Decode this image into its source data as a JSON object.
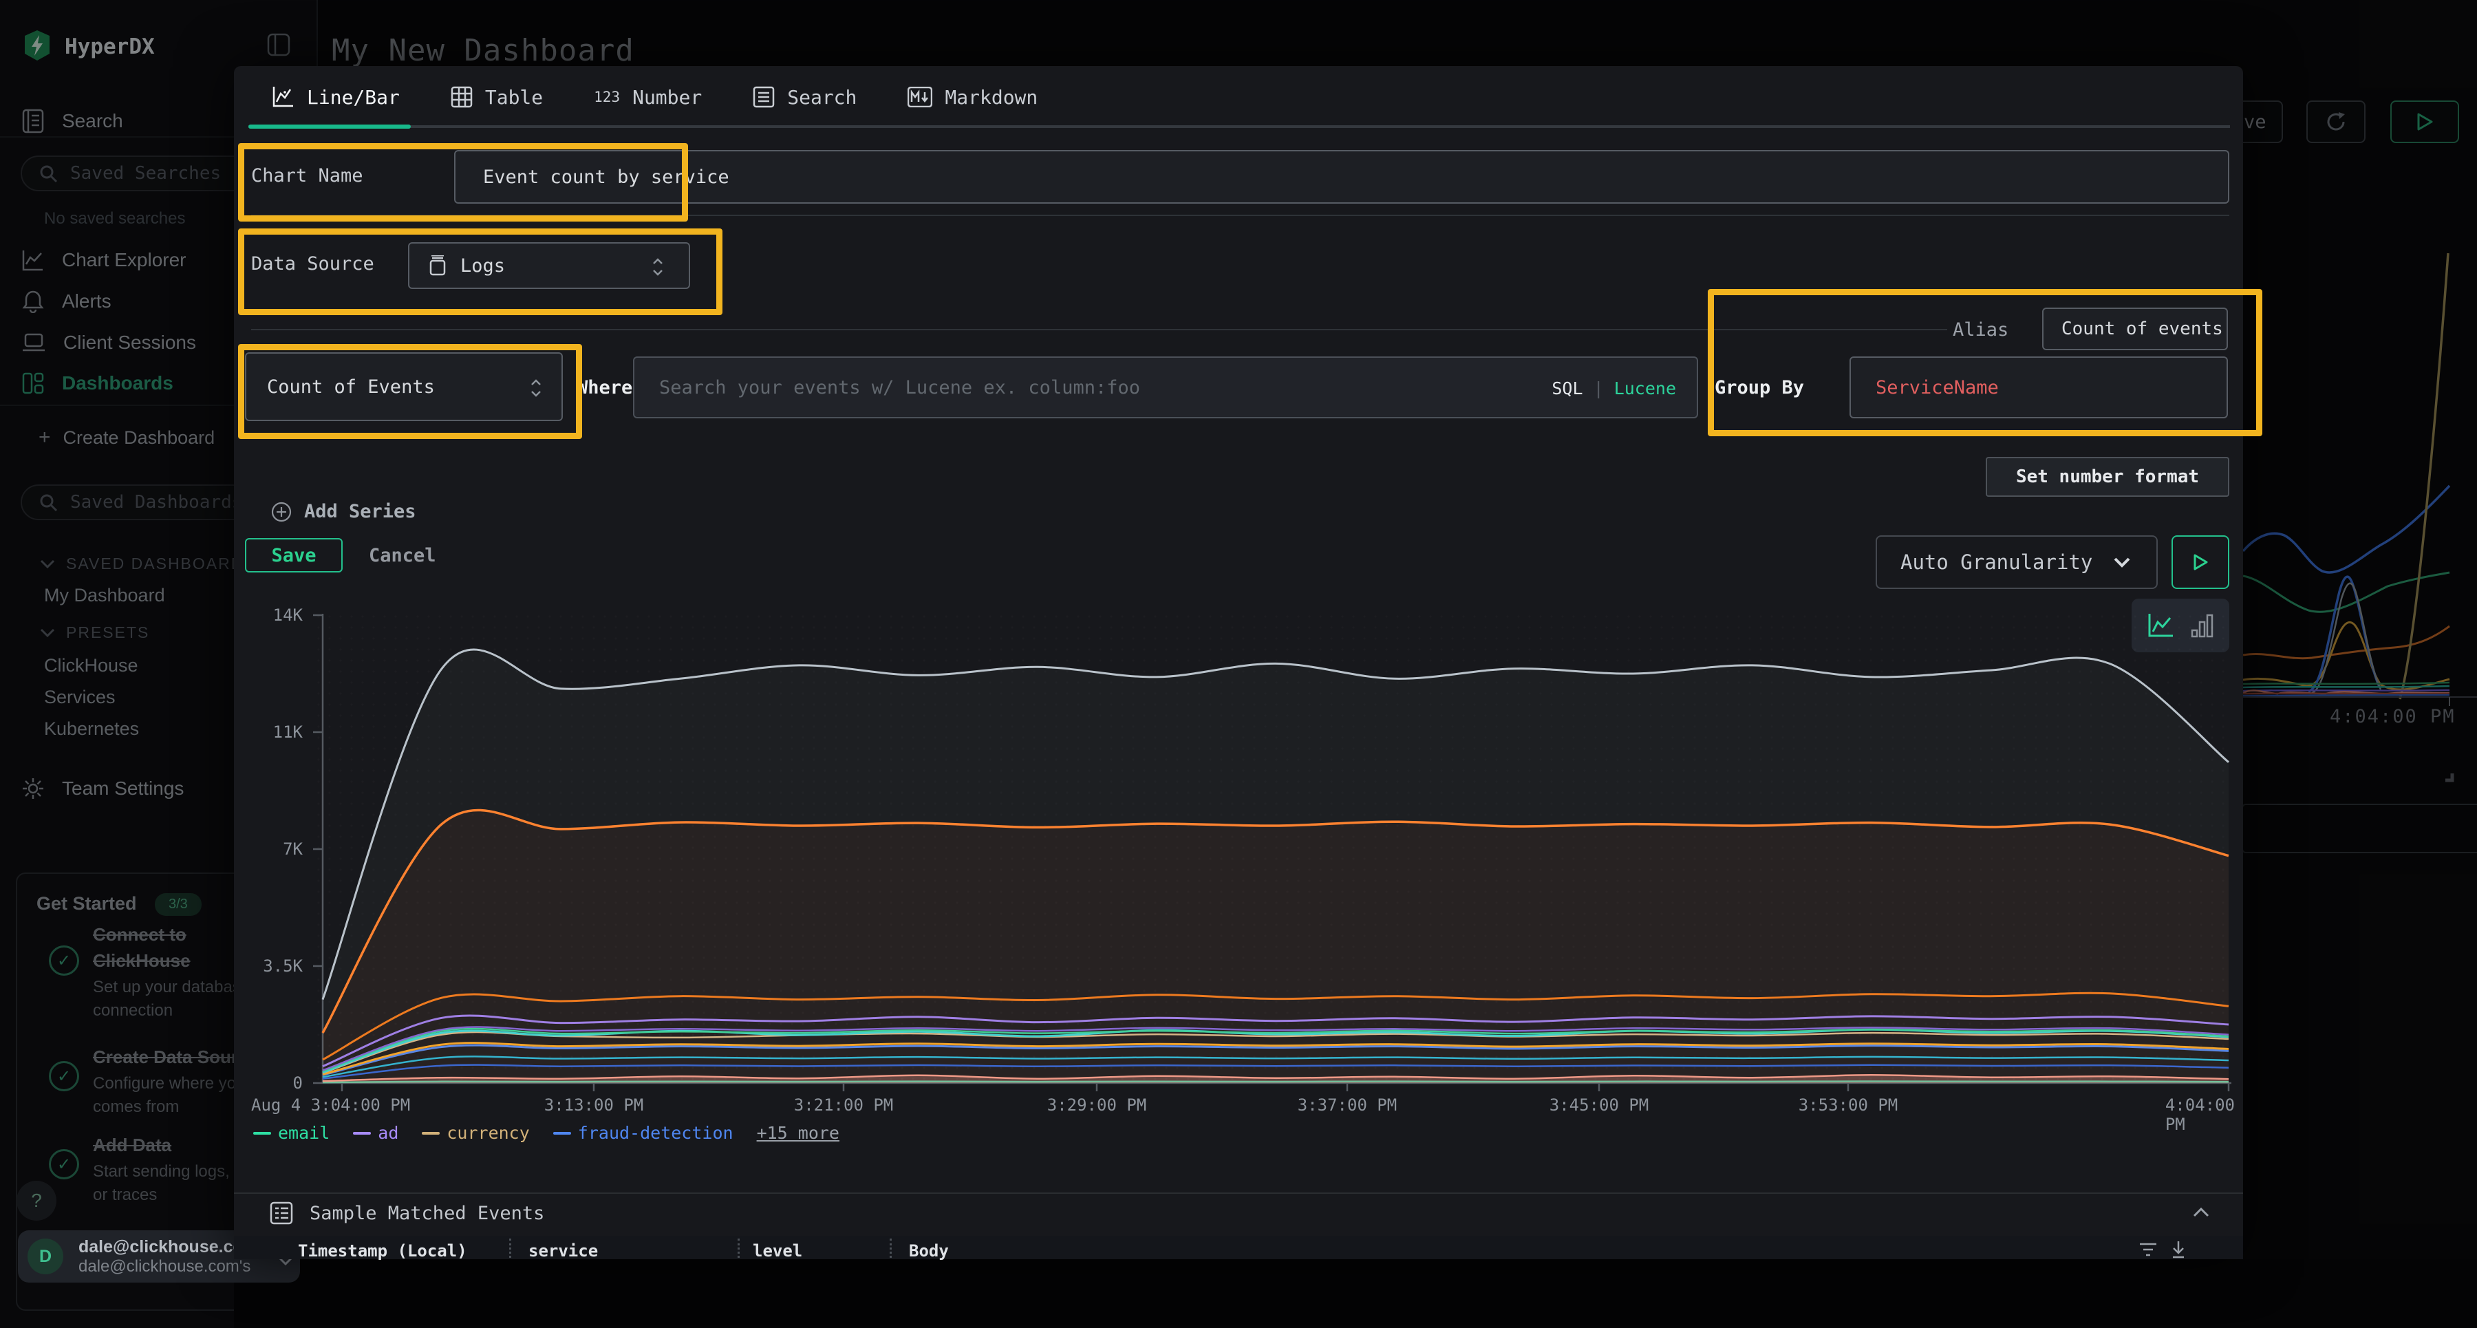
{
  "app": {
    "name": "HyperDX"
  },
  "sidebar": {
    "nav": [
      {
        "label": "Search"
      },
      {
        "label": "Chart Explorer"
      },
      {
        "label": "Alerts"
      },
      {
        "label": "Client Sessions"
      },
      {
        "label": "Dashboards"
      }
    ],
    "saved_searches_placeholder": "Saved Searches",
    "no_saved_searches": "No saved searches",
    "create_dashboard": "Create Dashboard",
    "saved_dashboards_placeholder": "Saved Dashboards",
    "sections": {
      "saved": "SAVED DASHBOARDS",
      "presets": "PRESETS"
    },
    "saved_items": [
      {
        "label": "My Dashboard"
      }
    ],
    "preset_items": [
      {
        "label": "ClickHouse"
      },
      {
        "label": "Services"
      },
      {
        "label": "Kubernetes"
      }
    ],
    "team_settings": "Team Settings",
    "get_started": {
      "title": "Get Started",
      "badge": "3/3",
      "items": [
        {
          "title": "Connect to ClickHouse",
          "subtitle": "Set up your database connection"
        },
        {
          "title": "Create Data Source",
          "subtitle": "Configure where your data comes from"
        },
        {
          "title": "Add Data",
          "subtitle": "Start sending logs, metrics, or traces"
        }
      ]
    },
    "help": "?",
    "user": {
      "initial": "D",
      "name": "dale@clickhouse.com",
      "detail": "dale@clickhouse.com's"
    }
  },
  "header": {
    "title": "My New Dashboard",
    "save": "Save"
  },
  "modal": {
    "tabs": [
      {
        "label": "Line/Bar"
      },
      {
        "label": "Table"
      },
      {
        "label": "Number"
      },
      {
        "label": "Search"
      },
      {
        "label": "Markdown"
      }
    ],
    "chart_name": {
      "label": "Chart Name",
      "value": "Event count by service"
    },
    "data_source": {
      "label": "Data Source",
      "value": "Logs"
    },
    "series_editor": {
      "aggregation": "Count of Events",
      "where_label": "Where",
      "where_placeholder": "Search your events w/ Lucene ex. column:foo",
      "sql": "SQL",
      "pipe": "|",
      "lucene": "Lucene",
      "alias_label": "Alias",
      "alias_value": "Count of events",
      "group_by_label": "Group By",
      "group_by_value": "ServiceName"
    },
    "add_series": "Add Series",
    "save": "Save",
    "cancel": "Cancel",
    "set_number_format": "Set number format",
    "granularity": "Auto Granularity",
    "sample": {
      "title": "Sample Matched Events",
      "columns": [
        {
          "label": "Timestamp (Local)"
        },
        {
          "label": "service"
        },
        {
          "label": "level"
        },
        {
          "label": "Body"
        }
      ]
    }
  },
  "background": {
    "time_label": "4:04:00 PM"
  },
  "chart_data": {
    "type": "line",
    "title": "Event count by service",
    "xlabel": "",
    "ylabel": "",
    "ylim": [
      0,
      14000
    ],
    "grid": false,
    "legend_position": "bottom-left",
    "y_ticks": [
      "14K",
      "11K",
      "7K",
      "3.5K",
      "0"
    ],
    "x_ticks": [
      "Aug 4 3:04:00 PM",
      "3:13:00 PM",
      "3:21:00 PM",
      "3:29:00 PM",
      "3:37:00 PM",
      "3:45:00 PM",
      "3:53:00 PM",
      "4:04:00 PM"
    ],
    "legend": [
      {
        "label": "email",
        "color": "#2edfa3"
      },
      {
        "label": "ad",
        "color": "#a78bfa"
      },
      {
        "label": "currency",
        "color": "#d2b179"
      },
      {
        "label": "fraud-detection",
        "color": "#4f86f0"
      },
      {
        "label": "+15 more",
        "color": ""
      }
    ],
    "series": [
      {
        "name": "",
        "color": "#2dd4a7",
        "width": 2.5,
        "values": [
          20,
          45,
          40,
          48,
          42,
          50,
          40,
          48,
          42,
          50,
          40,
          48,
          44,
          52,
          46,
          48,
          38
        ]
      },
      {
        "name": "",
        "color": "#f2998a",
        "width": 2.5,
        "fill": 0.3,
        "values": [
          60,
          160,
          130,
          200,
          140,
          230,
          130,
          210,
          150,
          190,
          130,
          220,
          160,
          240,
          170,
          200,
          120
        ]
      },
      {
        "name": "",
        "color": "#2d63d8",
        "width": 2.5,
        "values": [
          130,
          520,
          500,
          530,
          505,
          535,
          500,
          530,
          510,
          530,
          500,
          525,
          510,
          540,
          515,
          530,
          460
        ]
      },
      {
        "name": "",
        "color": "#24b6d8",
        "width": 2.5,
        "values": [
          180,
          760,
          730,
          770,
          740,
          780,
          730,
          770,
          740,
          770,
          725,
          765,
          745,
          785,
          750,
          770,
          680
        ]
      },
      {
        "name": "fraud-detection",
        "color": "#4f86f0",
        "width": 3,
        "values": [
          240,
          1080,
          1040,
          1100,
          1050,
          1110,
          1040,
          1100,
          1060,
          1100,
          1030,
          1100,
          1060,
          1120,
          1070,
          1100,
          960
        ]
      },
      {
        "name": "",
        "color": "#f5a524",
        "width": 3,
        "values": [
          260,
          1150,
          1100,
          1160,
          1110,
          1180,
          1100,
          1170,
          1120,
          1160,
          1090,
          1160,
          1120,
          1180,
          1130,
          1160,
          1020
        ]
      },
      {
        "name": "currency",
        "color": "#d6b88a",
        "width": 2.5,
        "values": [
          300,
          1450,
          1400,
          1360,
          1430,
          1480,
          1380,
          1460,
          1400,
          1470,
          1390,
          1460,
          1420,
          1500,
          1440,
          1470,
          1320
        ]
      },
      {
        "name": "",
        "color": "#35d6d6",
        "width": 3,
        "values": [
          320,
          1500,
          1420,
          1560,
          1440,
          1540,
          1400,
          1580,
          1460,
          1520,
          1410,
          1560,
          1480,
          1600,
          1500,
          1560,
          1380
        ]
      },
      {
        "name": "email",
        "color": "#34d399",
        "width": 2.5,
        "values": [
          350,
          1560,
          1480,
          1540,
          1500,
          1580,
          1490,
          1560,
          1500,
          1570,
          1480,
          1560,
          1520,
          1600,
          1540,
          1580,
          1400
        ]
      },
      {
        "name": "",
        "color": "#7c62d8",
        "width": 2.5,
        "values": [
          380,
          1600,
          1560,
          1620,
          1570,
          1640,
          1560,
          1650,
          1580,
          1620,
          1560,
          1640,
          1600,
          1660,
          1600,
          1640,
          1450
        ]
      },
      {
        "name": "ad",
        "color": "#9a7df0",
        "width": 3,
        "values": [
          500,
          1950,
          1800,
          1900,
          1850,
          1980,
          1820,
          1950,
          1860,
          1940,
          1830,
          1960,
          1900,
          2000,
          1920,
          1980,
          1750
        ]
      },
      {
        "name": "",
        "color": "#f07818",
        "width": 3,
        "values": [
          700,
          2550,
          2450,
          2600,
          2500,
          2580,
          2480,
          2640,
          2520,
          2600,
          2500,
          2620,
          2540,
          2660,
          2600,
          2680,
          2300
        ]
      },
      {
        "name": "",
        "color": "#ff7f2a",
        "width": 3.5,
        "fill": 0.05,
        "values": [
          1500,
          7750,
          7600,
          7800,
          7700,
          7780,
          7650,
          7760,
          7700,
          7820,
          7680,
          7750,
          7700,
          7790,
          7660,
          7740,
          6800
        ]
      },
      {
        "name": "",
        "color": "#b9c2ca",
        "width": 3,
        "fill": 0.04,
        "values": [
          2500,
          12400,
          11800,
          12100,
          12500,
          12200,
          12450,
          12150,
          12550,
          12100,
          12400,
          12250,
          12500,
          12150,
          12350,
          12550,
          9600
        ]
      }
    ]
  }
}
